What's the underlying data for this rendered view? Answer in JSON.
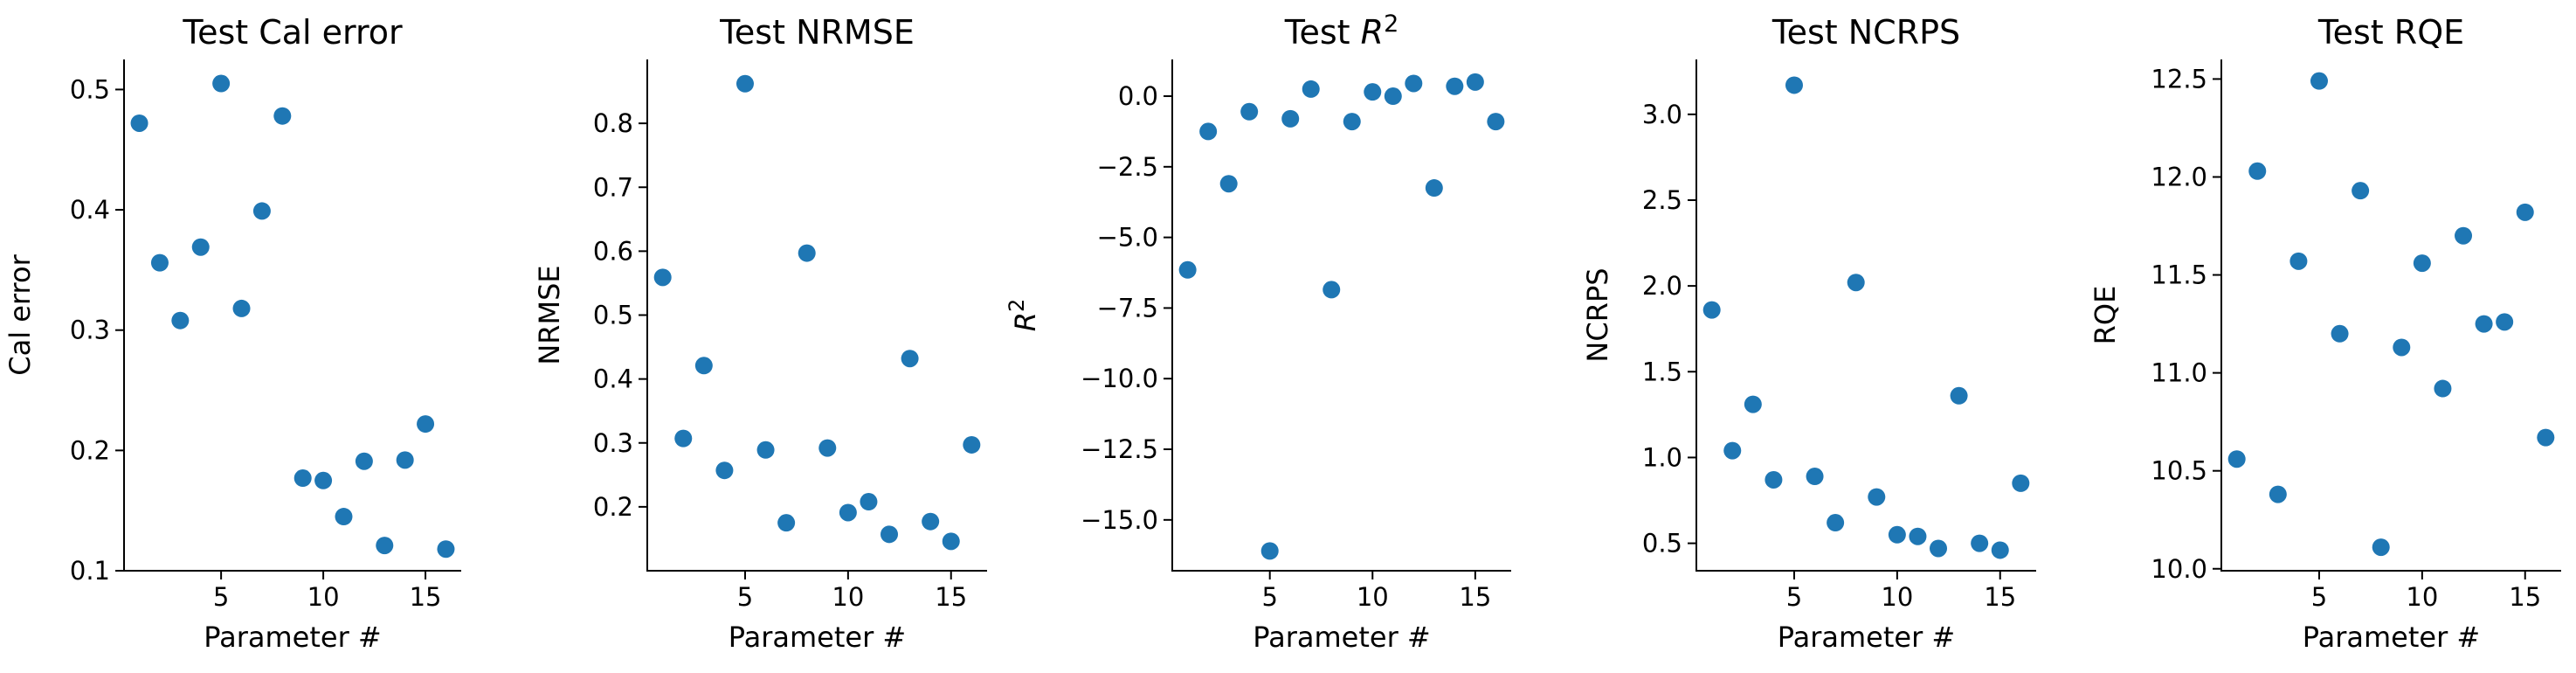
{
  "chart_data": [
    {
      "type": "scatter",
      "title": "Test Cal error",
      "xlabel": "Parameter #",
      "ylabel": "Cal error",
      "xlim": [
        0.25,
        16.75
      ],
      "ylim": [
        0.1,
        0.525
      ],
      "xticks": [
        5,
        10,
        15
      ],
      "yticks": [
        0.1,
        0.2,
        0.3,
        0.4,
        0.5
      ],
      "ytick_labels": [
        "0.1",
        "0.2",
        "0.3",
        "0.4",
        "0.5"
      ],
      "color": "#1f77b4",
      "x": [
        1,
        2,
        3,
        4,
        5,
        6,
        7,
        8,
        9,
        10,
        11,
        12,
        13,
        14,
        15,
        16
      ],
      "y": [
        0.472,
        0.356,
        0.308,
        0.369,
        0.505,
        0.318,
        0.399,
        0.478,
        0.177,
        0.175,
        0.145,
        0.191,
        0.121,
        0.192,
        0.222,
        0.118
      ]
    },
    {
      "type": "scatter",
      "title": "Test NRMSE",
      "xlabel": "Parameter #",
      "ylabel": "NRMSE",
      "xlim": [
        0.25,
        16.75
      ],
      "ylim": [
        0.1,
        0.9
      ],
      "xticks": [
        5,
        10,
        15
      ],
      "yticks": [
        0.2,
        0.3,
        0.4,
        0.5,
        0.6,
        0.7,
        0.8
      ],
      "ytick_labels": [
        "0.2",
        "0.3",
        "0.4",
        "0.5",
        "0.6",
        "0.7",
        "0.8"
      ],
      "color": "#1f77b4",
      "x": [
        1,
        2,
        3,
        4,
        5,
        6,
        7,
        8,
        9,
        10,
        11,
        12,
        13,
        14,
        15,
        16
      ],
      "y": [
        0.559,
        0.307,
        0.421,
        0.257,
        0.862,
        0.289,
        0.175,
        0.597,
        0.292,
        0.191,
        0.208,
        0.157,
        0.432,
        0.177,
        0.146,
        0.297
      ]
    },
    {
      "type": "scatter",
      "title": "Test R",
      "title_sup": "2",
      "xlabel": "Parameter #",
      "ylabel": "R",
      "ylabel_sup": "2",
      "xlim": [
        0.25,
        16.75
      ],
      "ylim": [
        -16.8,
        1.3
      ],
      "xticks": [
        5,
        10,
        15
      ],
      "yticks": [
        0,
        -2.5,
        -5,
        -7.5,
        -10,
        -12.5,
        -15
      ],
      "ytick_labels": [
        "0.0",
        "−2.5",
        "−5.0",
        "−7.5",
        "−10.0",
        "−12.5",
        "−15.0"
      ],
      "color": "#1f77b4",
      "x": [
        1,
        2,
        3,
        4,
        5,
        6,
        7,
        8,
        9,
        10,
        11,
        12,
        13,
        14,
        15,
        16
      ],
      "y": [
        -6.15,
        -1.25,
        -3.1,
        -0.55,
        -16.1,
        -0.8,
        0.25,
        -6.85,
        -0.9,
        0.15,
        0.0,
        0.45,
        -3.25,
        0.35,
        0.5,
        -0.9
      ]
    },
    {
      "type": "scatter",
      "title": "Test NCRPS",
      "xlabel": "Parameter #",
      "ylabel": "NCRPS",
      "xlim": [
        0.25,
        16.75
      ],
      "ylim": [
        0.34,
        3.32
      ],
      "xticks": [
        5,
        10,
        15
      ],
      "yticks": [
        0.5,
        1.0,
        1.5,
        2.0,
        2.5,
        3.0
      ],
      "ytick_labels": [
        "0.5",
        "1.0",
        "1.5",
        "2.0",
        "2.5",
        "3.0"
      ],
      "color": "#1f77b4",
      "x": [
        1,
        2,
        3,
        4,
        5,
        6,
        7,
        8,
        9,
        10,
        11,
        12,
        13,
        14,
        15,
        16
      ],
      "y": [
        1.86,
        1.04,
        1.31,
        0.87,
        3.17,
        0.89,
        0.62,
        2.02,
        0.77,
        0.55,
        0.54,
        0.47,
        1.36,
        0.5,
        0.46,
        0.85
      ]
    },
    {
      "type": "scatter",
      "title": "Test RQE",
      "xlabel": "Parameter #",
      "ylabel": "RQE",
      "xlim": [
        0.25,
        16.75
      ],
      "ylim": [
        9.99,
        12.6
      ],
      "xticks": [
        5,
        10,
        15
      ],
      "yticks": [
        10.0,
        10.5,
        11.0,
        11.5,
        12.0,
        12.5
      ],
      "ytick_labels": [
        "10.0",
        "10.5",
        "11.0",
        "11.5",
        "12.0",
        "12.5"
      ],
      "color": "#1f77b4",
      "x": [
        1,
        2,
        3,
        4,
        5,
        6,
        7,
        8,
        9,
        10,
        11,
        12,
        13,
        14,
        15,
        16
      ],
      "y": [
        10.56,
        12.03,
        10.38,
        11.57,
        12.49,
        11.2,
        11.93,
        10.11,
        11.13,
        11.56,
        10.92,
        11.7,
        11.25,
        11.26,
        11.82,
        10.67
      ]
    }
  ]
}
